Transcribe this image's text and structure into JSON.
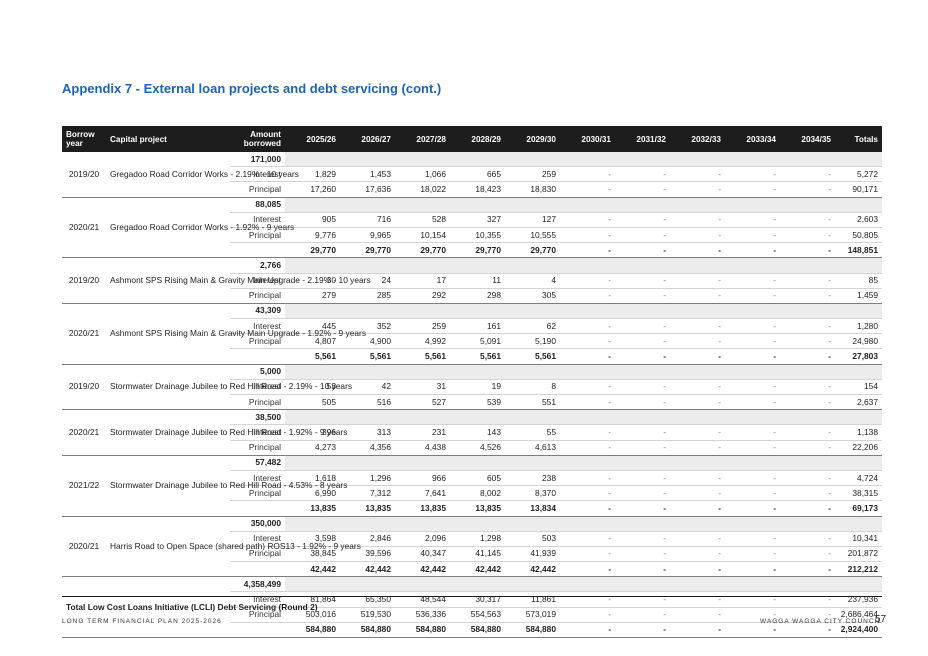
{
  "title": "Appendix 7 - External loan projects and debt servicing (cont.)",
  "headers": {
    "year": "Borrow year",
    "project": "Capital project",
    "amount": "Amount borrowed",
    "years": [
      "2025/26",
      "2026/27",
      "2027/28",
      "2028/29",
      "2029/30",
      "2030/31",
      "2031/32",
      "2032/33",
      "2033/34",
      "2034/35"
    ],
    "totals": "Totals"
  },
  "labels": {
    "interest": "Interest",
    "principal": "Principal"
  },
  "projects": [
    {
      "year": "2019/20",
      "name": "Gregadoo Road Corridor Works - 2.19% - 10 years",
      "amount": "171,000",
      "interest": [
        "1,829",
        "1,453",
        "1,066",
        "665",
        "259",
        "-",
        "-",
        "-",
        "-",
        "-",
        "5,272"
      ],
      "principal": [
        "17,260",
        "17,636",
        "18,022",
        "18,423",
        "18,830",
        "-",
        "-",
        "-",
        "-",
        "-",
        "90,171"
      ]
    },
    {
      "year": "2020/21",
      "name": "Gregadoo Road Corridor Works - 1.92% - 9 years",
      "amount": "88,085",
      "interest": [
        "905",
        "716",
        "528",
        "327",
        "127",
        "-",
        "-",
        "-",
        "-",
        "-",
        "2,603"
      ],
      "principal": [
        "9,776",
        "9,965",
        "10,154",
        "10,355",
        "10,555",
        "-",
        "-",
        "-",
        "-",
        "-",
        "50,805"
      ],
      "total": [
        "29,770",
        "29,770",
        "29,770",
        "29,770",
        "29,770",
        "-",
        "-",
        "-",
        "-",
        "-",
        "148,851"
      ]
    },
    {
      "year": "2019/20",
      "name": "Ashmont SPS Rising Main & Gravity Main Upgrade - 2.19% - 10 years",
      "amount": "2,766",
      "interest": [
        "30",
        "24",
        "17",
        "11",
        "4",
        "-",
        "-",
        "-",
        "-",
        "-",
        "85"
      ],
      "principal": [
        "279",
        "285",
        "292",
        "298",
        "305",
        "-",
        "-",
        "-",
        "-",
        "-",
        "1,459"
      ]
    },
    {
      "year": "2020/21",
      "name": "Ashmont SPS Rising Main & Gravity Main Upgrade - 1.92% - 9 years",
      "amount": "43,309",
      "interest": [
        "445",
        "352",
        "259",
        "161",
        "62",
        "-",
        "-",
        "-",
        "-",
        "-",
        "1,280"
      ],
      "principal": [
        "4,807",
        "4,900",
        "4,992",
        "5,091",
        "5,190",
        "-",
        "-",
        "-",
        "-",
        "-",
        "24,980"
      ],
      "total": [
        "5,561",
        "5,561",
        "5,561",
        "5,561",
        "5,561",
        "-",
        "-",
        "-",
        "-",
        "-",
        "27,803"
      ]
    },
    {
      "year": "2019/20",
      "name": "Stormwater Drainage Jubilee to Red Hill Road - 2.19% - 10 years",
      "amount": "5,000",
      "interest": [
        "53",
        "42",
        "31",
        "19",
        "8",
        "-",
        "-",
        "-",
        "-",
        "-",
        "154"
      ],
      "principal": [
        "505",
        "516",
        "527",
        "539",
        "551",
        "-",
        "-",
        "-",
        "-",
        "-",
        "2,637"
      ]
    },
    {
      "year": "2020/21",
      "name": "Stormwater Drainage Jubilee to Red Hill Road - 1.92% - 9 years",
      "amount": "38,500",
      "interest": [
        "396",
        "313",
        "231",
        "143",
        "55",
        "-",
        "-",
        "-",
        "-",
        "-",
        "1,138"
      ],
      "principal": [
        "4,273",
        "4,356",
        "4,438",
        "4,526",
        "4,613",
        "-",
        "-",
        "-",
        "-",
        "-",
        "22,206"
      ]
    },
    {
      "year": "2021/22",
      "name": "Stormwater Drainage Jubilee to Red Hill Road - 4.53% - 8 years",
      "amount": "57,482",
      "interest": [
        "1,618",
        "1,296",
        "966",
        "605",
        "238",
        "-",
        "-",
        "-",
        "-",
        "-",
        "4,724"
      ],
      "principal": [
        "6,990",
        "7,312",
        "7,641",
        "8,002",
        "8,370",
        "-",
        "-",
        "-",
        "-",
        "-",
        "38,315"
      ],
      "total": [
        "13,835",
        "13,835",
        "13,835",
        "13,835",
        "13,834",
        "-",
        "-",
        "-",
        "-",
        "-",
        "69,173"
      ]
    },
    {
      "year": "2020/21",
      "name": "Harris Road to Open Space (shared path) ROS13 - 1.92% - 9 years",
      "amount": "350,000",
      "interest": [
        "3,598",
        "2,846",
        "2,096",
        "1,298",
        "503",
        "-",
        "-",
        "-",
        "-",
        "-",
        "10,341"
      ],
      "principal": [
        "38,845",
        "39,596",
        "40,347",
        "41,145",
        "41,939",
        "-",
        "-",
        "-",
        "-",
        "-",
        "201,872"
      ],
      "total": [
        "42,442",
        "42,442",
        "42,442",
        "42,442",
        "42,442",
        "-",
        "-",
        "-",
        "-",
        "-",
        "212,212"
      ]
    }
  ],
  "lcli": {
    "name": "Total Low Cost Loans Initiative (LCLI) Debt Servicing (Round 2)",
    "amount": "4,358,499",
    "interest": [
      "81,864",
      "65,350",
      "48,544",
      "30,317",
      "11,861",
      "-",
      "-",
      "-",
      "-",
      "-",
      "237,936"
    ],
    "principal": [
      "503,016",
      "519,530",
      "536,336",
      "554,563",
      "573,019",
      "-",
      "-",
      "-",
      "-",
      "-",
      "2,686,464"
    ],
    "total": [
      "584,880",
      "584,880",
      "584,880",
      "584,880",
      "584,880",
      "-",
      "-",
      "-",
      "-",
      "-",
      "2,924,400"
    ]
  },
  "footer": {
    "left": "LONG TERM FINANCIAL PLAN 2025-2026",
    "right": "WAGGA WAGGA CITY COUNCIL",
    "page": "57"
  }
}
